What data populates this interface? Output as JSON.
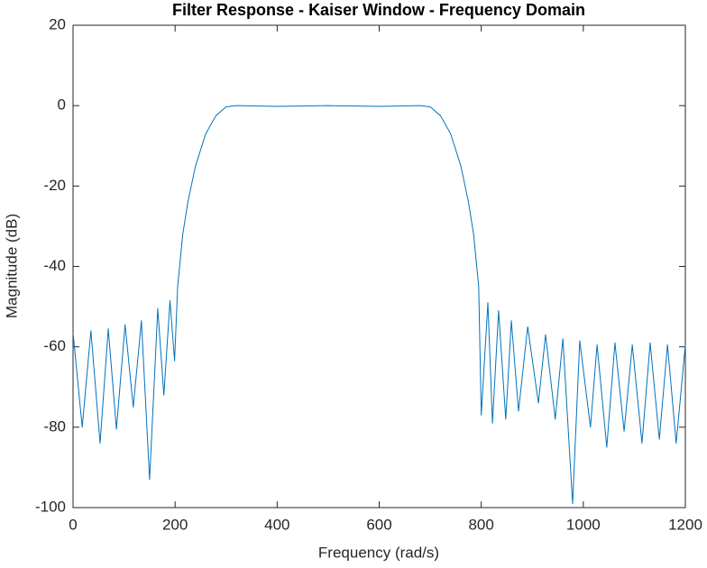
{
  "chart_data": {
    "type": "line",
    "title": "Filter Response - Kaiser Window - Frequency Domain",
    "x_label": "Frequency (rad/s)",
    "y_label": "Magnitude (dB)",
    "x": [
      0,
      18,
      35,
      53,
      69,
      85,
      102,
      118,
      134,
      150,
      166,
      178,
      190,
      199,
      205,
      215,
      225,
      240,
      260,
      280,
      300,
      320,
      400,
      500,
      600,
      680,
      700,
      720,
      740,
      760,
      775,
      785,
      795,
      800,
      813,
      822,
      834,
      848,
      859,
      873,
      891,
      912,
      926,
      945,
      960,
      979,
      993,
      1014,
      1027,
      1046,
      1062,
      1080,
      1096,
      1115,
      1131,
      1149,
      1165,
      1182,
      1200
    ],
    "series": [
      {
        "color": "#0072bd",
        "values": [
          -56.5,
          -80,
          -56,
          -84,
          -55.5,
          -80.5,
          -54.5,
          -75,
          -53.5,
          -93,
          -50.5,
          -72,
          -48.5,
          -63.5,
          -45,
          -32,
          -24,
          -15,
          -7,
          -2.5,
          -0.3,
          0,
          -0.2,
          0,
          -0.2,
          0,
          -0.3,
          -2.5,
          -7,
          -15,
          -24,
          -32,
          -45,
          -77,
          -49,
          -79,
          -51,
          -78,
          -53.5,
          -76,
          -55,
          -74,
          -57,
          -78,
          -58,
          -99,
          -58.5,
          -80,
          -59.5,
          -85,
          -59,
          -81,
          -59.5,
          -84,
          -59,
          -83,
          -59.5,
          -84,
          -59.5
        ]
      }
    ],
    "xlim": [
      0,
      1200
    ],
    "xticks": [
      0,
      200,
      400,
      600,
      800,
      1000,
      1200
    ],
    "ylim": [
      -100,
      20
    ],
    "yticks": [
      -100,
      -80,
      -60,
      -40,
      -20,
      0,
      20
    ]
  }
}
